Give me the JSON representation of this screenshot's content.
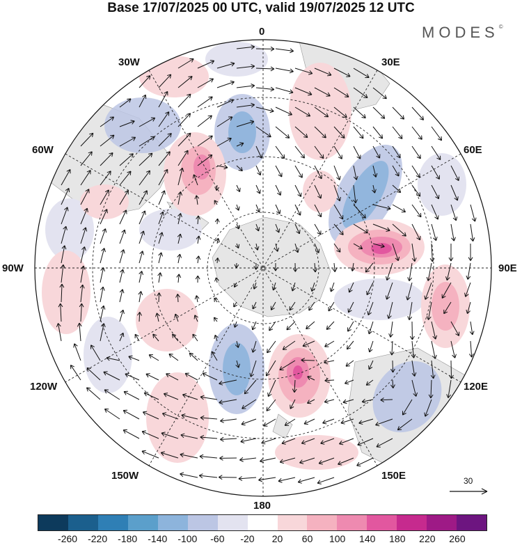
{
  "title": "Base 17/07/2025 00 UTC, valid 19/07/2025 12 UTC",
  "brand": "MODES",
  "brand_mark": "©",
  "lon_labels": {
    "top": "0",
    "top_right": "30E",
    "right_upper": "60E",
    "right": "90E",
    "right_lower": "120E",
    "bottom_right": "150E",
    "bottom": "180",
    "bottom_left": "150W",
    "left_lower": "120W",
    "left": "90W",
    "left_upper": "60W",
    "top_left": "30W"
  },
  "reference_vector": "30",
  "colorbar": {
    "colors": [
      "#0d3a5c",
      "#1b5f8d",
      "#2f7fb5",
      "#5b9fcb",
      "#8db4dc",
      "#bcc6e4",
      "#e3e3f0",
      "#ffffff",
      "#f8d7da",
      "#f5b2c0",
      "#ee8ab0",
      "#e2579f",
      "#c62a8e",
      "#9e1a86",
      "#6d1580"
    ],
    "ticks": [
      "-260",
      "-220",
      "-180",
      "-140",
      "-100",
      "-60",
      "-20",
      "20",
      "60",
      "100",
      "140",
      "180",
      "220",
      "260"
    ]
  }
}
